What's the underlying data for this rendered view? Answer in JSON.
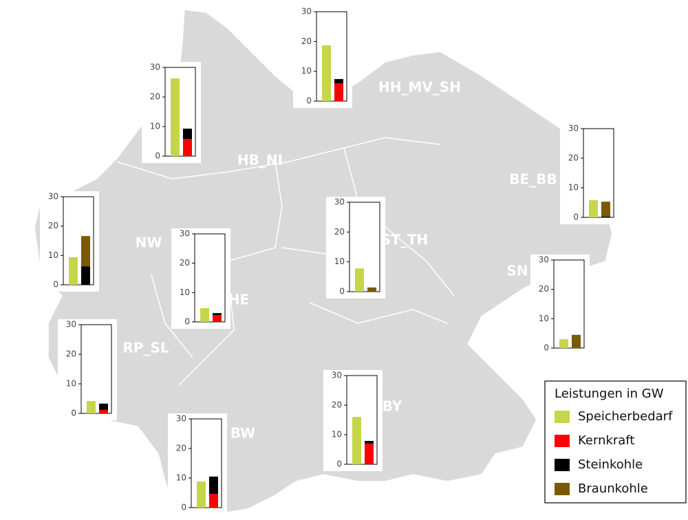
{
  "legend": {
    "title": "Leistungen in GW",
    "series": [
      {
        "name": "Speicherbedarf",
        "color": "#c5d64a"
      },
      {
        "name": "Kernkraft",
        "color": "#ff0000"
      },
      {
        "name": "Steinkohle",
        "color": "#000000"
      },
      {
        "name": "Braunkohle",
        "color": "#7a5a00"
      }
    ]
  },
  "chart_data": [
    {
      "type": "bar",
      "title": "HH_MV_SH",
      "ylim": [
        0,
        30
      ],
      "yticks": [
        0,
        10,
        20,
        30
      ],
      "values": [
        18.7,
        6,
        1.4,
        0
      ]
    },
    {
      "type": "bar",
      "title": "HB_NI",
      "ylim": [
        0,
        30
      ],
      "yticks": [
        0,
        10,
        20,
        30
      ],
      "values": [
        26.3,
        5.8,
        3.5,
        0
      ]
    },
    {
      "type": "bar",
      "title": "BE_BB",
      "ylim": [
        0,
        30
      ],
      "yticks": [
        0,
        10,
        20,
        30
      ],
      "values": [
        5.8,
        0,
        0.3,
        5
      ]
    },
    {
      "type": "bar",
      "title": "NW",
      "ylim": [
        0,
        30
      ],
      "yticks": [
        0,
        10,
        20,
        30
      ],
      "values": [
        9.4,
        0,
        6.3,
        10.3
      ]
    },
    {
      "type": "bar",
      "title": "HE",
      "ylim": [
        0,
        30
      ],
      "yticks": [
        0,
        10,
        20,
        30
      ],
      "values": [
        4.7,
        2.3,
        0.7,
        0
      ]
    },
    {
      "type": "bar",
      "title": "ST_TH",
      "ylim": [
        0,
        30
      ],
      "yticks": [
        0,
        10,
        20,
        30
      ],
      "values": [
        7.8,
        0,
        0,
        1.4
      ]
    },
    {
      "type": "bar",
      "title": "SN",
      "ylim": [
        0,
        30
      ],
      "yticks": [
        0,
        10,
        20,
        30
      ],
      "values": [
        3,
        0,
        0,
        4.5
      ]
    },
    {
      "type": "bar",
      "title": "RP_SL",
      "ylim": [
        0,
        30
      ],
      "yticks": [
        0,
        10,
        20,
        30
      ],
      "values": [
        4.2,
        1.2,
        2.1,
        0
      ]
    },
    {
      "type": "bar",
      "title": "BY",
      "ylim": [
        0,
        30
      ],
      "yticks": [
        0,
        10,
        20,
        30
      ],
      "values": [
        16,
        7,
        0.9,
        0
      ]
    },
    {
      "type": "bar",
      "title": "BW",
      "ylim": [
        0,
        30
      ],
      "yticks": [
        0,
        10,
        20,
        30
      ],
      "values": [
        8.8,
        4.6,
        5.9,
        0
      ]
    }
  ]
}
